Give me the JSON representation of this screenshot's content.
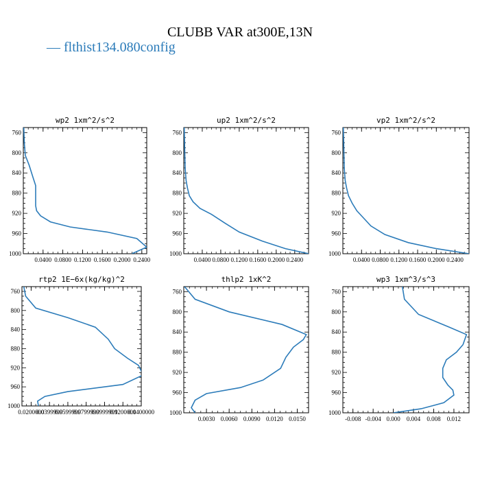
{
  "title": "CLUBB VAR at300E,13N",
  "legend": {
    "label": "— flthist134.080config",
    "color": "#2b7bb9"
  },
  "chart_data": [
    {
      "type": "line",
      "title": "wp2  1xm^2/s^2",
      "xlim": [
        0.0,
        0.25
      ],
      "ylim": [
        1000,
        750
      ],
      "yticks": [
        760,
        800,
        840,
        880,
        920,
        960,
        1000
      ],
      "xticks": [
        0.04,
        0.08,
        0.12,
        0.16,
        0.2,
        0.24
      ],
      "xtick_labels": [
        "0.0400",
        "0.0800",
        "0.1200",
        "0.1600",
        "0.2000",
        "0.2400"
      ],
      "series": [
        {
          "x": [
            0.001,
            0.002,
            0.004,
            0.012,
            0.02,
            0.025,
            0.025,
            0.025,
            0.027,
            0.035,
            0.055,
            0.095,
            0.17,
            0.23,
            0.25,
            0.22
          ],
          "y": [
            750,
            780,
            805,
            825,
            850,
            865,
            880,
            905,
            915,
            925,
            937,
            947,
            957,
            970,
            987,
            1000
          ]
        }
      ]
    },
    {
      "type": "line",
      "title": "up2  1xm^2/s^2",
      "xlim": [
        0.0,
        0.27
      ],
      "ylim": [
        1000,
        750
      ],
      "yticks": [
        760,
        800,
        840,
        880,
        920,
        960,
        1000
      ],
      "xticks": [
        0.04,
        0.08,
        0.12,
        0.16,
        0.2,
        0.24
      ],
      "xtick_labels": [
        "0.0400",
        "0.0800",
        "0.1200",
        "0.1600",
        "0.2000",
        "0.2400"
      ],
      "series": [
        {
          "x": [
            0.001,
            0.002,
            0.003,
            0.005,
            0.008,
            0.012,
            0.02,
            0.035,
            0.06,
            0.09,
            0.12,
            0.17,
            0.22,
            0.27
          ],
          "y": [
            750,
            790,
            830,
            855,
            870,
            885,
            897,
            910,
            922,
            940,
            957,
            975,
            990,
            1000
          ]
        }
      ]
    },
    {
      "type": "line",
      "title": "vp2  1xm^2/s^2",
      "xlim": [
        0.0,
        0.27
      ],
      "ylim": [
        1000,
        750
      ],
      "yticks": [
        760,
        800,
        840,
        880,
        920,
        960,
        1000
      ],
      "xticks": [
        0.04,
        0.08,
        0.12,
        0.16,
        0.2,
        0.24
      ],
      "xtick_labels": [
        "0.0400",
        "0.0800",
        "0.1200",
        "0.1600",
        "0.2000",
        "0.2400"
      ],
      "series": [
        {
          "x": [
            0.001,
            0.002,
            0.003,
            0.005,
            0.008,
            0.012,
            0.02,
            0.03,
            0.045,
            0.06,
            0.09,
            0.14,
            0.2,
            0.27
          ],
          "y": [
            750,
            790,
            830,
            855,
            870,
            885,
            900,
            915,
            930,
            945,
            962,
            978,
            990,
            1000
          ]
        }
      ]
    },
    {
      "type": "line",
      "title": "rtp2  1E−6x(kg/kg)^2",
      "xlim": [
        0.01,
        0.14
      ],
      "ylim": [
        1000,
        750
      ],
      "yticks": [
        760,
        800,
        840,
        880,
        920,
        960,
        1000
      ],
      "xticks": [
        0.02,
        0.0399999,
        0.0599999,
        0.0799999,
        0.1,
        0.12,
        0.14
      ],
      "xtick_labels": [
        "0.0200000",
        "0.0399999",
        "0.0599999",
        "0.0799999",
        "0.0999999",
        "0.1200000",
        "0.1400000"
      ],
      "series": [
        {
          "x": [
            0.012,
            0.014,
            0.025,
            0.06,
            0.09,
            0.104,
            0.111,
            0.125,
            0.137,
            0.142,
            0.12,
            0.06,
            0.035,
            0.027,
            0.028
          ],
          "y": [
            750,
            770,
            795,
            815,
            835,
            860,
            880,
            900,
            915,
            935,
            955,
            970,
            980,
            990,
            1000
          ]
        }
      ]
    },
    {
      "type": "line",
      "title": "thlp2  1xK^2",
      "xlim": [
        0.0,
        0.0165
      ],
      "ylim": [
        1000,
        750
      ],
      "yticks": [
        760,
        800,
        840,
        880,
        920,
        960,
        1000
      ],
      "xticks": [
        0.003,
        0.006,
        0.009,
        0.012,
        0.015
      ],
      "xtick_labels": [
        "0.0030",
        "0.0060",
        "0.0090",
        "0.0120",
        "0.0150"
      ],
      "series": [
        {
          "x": [
            0.0001,
            0.0015,
            0.006,
            0.013,
            0.0162,
            0.0158,
            0.0145,
            0.0135,
            0.0128,
            0.0105,
            0.0075,
            0.003,
            0.0015,
            0.001,
            0.0015
          ],
          "y": [
            750,
            775,
            800,
            825,
            845,
            855,
            870,
            890,
            912,
            935,
            950,
            962,
            975,
            990,
            1000
          ]
        }
      ]
    },
    {
      "type": "line",
      "title": "wp3  1xm^3/s^3",
      "xlim": [
        -0.01,
        0.015
      ],
      "ylim": [
        1000,
        750
      ],
      "yticks": [
        760,
        800,
        840,
        880,
        920,
        960,
        1000
      ],
      "xticks": [
        -0.008,
        -0.004,
        0.0,
        0.004,
        0.008,
        0.012
      ],
      "xtick_labels": [
        "-0.008",
        "-0.004",
        "0.000",
        "0.004",
        "0.008",
        "0.012"
      ],
      "series": [
        {
          "x": [
            0.0018,
            0.0022,
            0.005,
            0.011,
            0.0145,
            0.0138,
            0.0125,
            0.0105,
            0.0098,
            0.0098,
            0.0108,
            0.0118,
            0.012,
            0.01,
            0.0055,
            0.0
          ],
          "y": [
            750,
            775,
            805,
            830,
            845,
            865,
            880,
            895,
            912,
            930,
            945,
            955,
            965,
            980,
            992,
            1000
          ]
        }
      ]
    }
  ]
}
